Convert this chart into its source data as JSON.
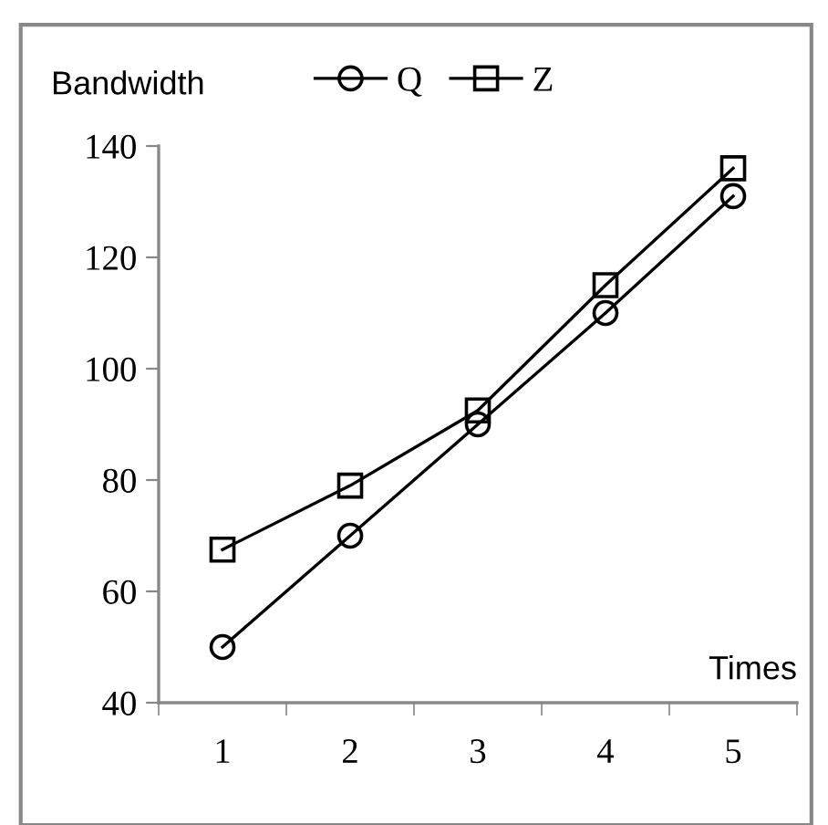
{
  "chart_data": {
    "type": "line",
    "xlabel": "Times",
    "ylabel": "Bandwidth",
    "categories": [
      "1",
      "2",
      "3",
      "4",
      "5"
    ],
    "series": [
      {
        "name": "Q",
        "color": "#000000",
        "marker": "circle",
        "values": [
          50,
          70,
          90,
          110,
          131
        ]
      },
      {
        "name": "Z",
        "color": "#000000",
        "marker": "square",
        "values": [
          67.5,
          79,
          92.5,
          115,
          136
        ]
      }
    ],
    "ylim": [
      40,
      140
    ],
    "yticks": [
      40,
      60,
      80,
      100,
      120,
      140
    ],
    "grid": false,
    "legend": "top",
    "line_style": "solid"
  }
}
